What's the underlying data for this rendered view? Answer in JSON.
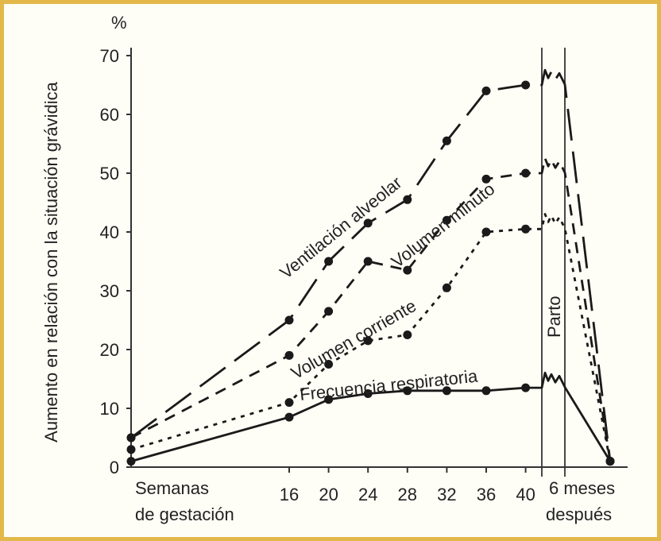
{
  "chart_data": {
    "type": "line",
    "ylabel_unit": "%",
    "ylabel": "Aumento en relación con la situación grávidica",
    "xlabel": [
      "Semanas",
      "de gestación"
    ],
    "x_ticks": [
      "16",
      "20",
      "24",
      "28",
      "32",
      "36",
      "40"
    ],
    "after_label": [
      "6 meses",
      "después"
    ],
    "parto_label": "Parto",
    "ylim": [
      0,
      70
    ],
    "y_ticks": [
      "0",
      "10",
      "20",
      "30",
      "40",
      "50",
      "60",
      "70"
    ],
    "grid": false,
    "x": [
      0,
      16,
      20,
      24,
      28,
      32,
      36,
      40
    ],
    "series": [
      {
        "name": "Ventilación alveolar",
        "values": [
          5,
          25,
          35,
          41.5,
          45.5,
          55.5,
          64,
          65
        ],
        "after": 1
      },
      {
        "name": "Volumen minuto",
        "values": [
          5,
          19,
          26.5,
          35,
          33.5,
          42,
          49,
          50
        ],
        "after": 1
      },
      {
        "name": "Volumen corriente",
        "values": [
          3,
          11,
          17.5,
          21.5,
          22.5,
          30.5,
          40,
          40.5
        ],
        "after": 1
      },
      {
        "name": "Frecuencia respiratoria",
        "values": [
          1,
          8.5,
          11.5,
          12.5,
          13,
          13,
          13,
          13.5
        ],
        "after": 1
      }
    ]
  },
  "colors": {
    "border": "#e3b84a",
    "line": "#1a1a1a"
  }
}
